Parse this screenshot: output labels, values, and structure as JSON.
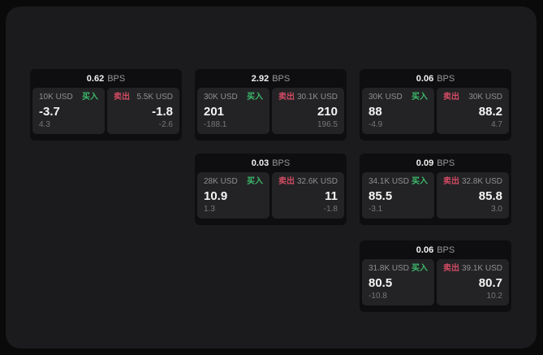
{
  "labels": {
    "buy": "买入",
    "sell": "卖出",
    "bps_unit": "BPS"
  },
  "colors": {
    "buy_green": "#3dba6c",
    "sell_red": "#d14b63",
    "panel_background": "#1b1b1d",
    "card_background": "#0e0e10",
    "tile_background": "#232325"
  },
  "cards": [
    {
      "bps": "0.62",
      "buy": {
        "amount": "10K USD",
        "price": "-3.7",
        "delta": "4.3"
      },
      "sell": {
        "amount": "5.5K USD",
        "price": "-1.8",
        "delta": "-2.6"
      }
    },
    {
      "bps": "2.92",
      "buy": {
        "amount": "30K USD",
        "price": "201",
        "delta": "-188.1"
      },
      "sell": {
        "amount": "30.1K USD",
        "price": "210",
        "delta": "196.5"
      }
    },
    {
      "bps": "0.06",
      "buy": {
        "amount": "30K USD",
        "price": "88",
        "delta": "-4.9"
      },
      "sell": {
        "amount": "30K USD",
        "price": "88.2",
        "delta": "4.7"
      }
    },
    {
      "bps": "0.03",
      "buy": {
        "amount": "28K USD",
        "price": "10.9",
        "delta": "1.3"
      },
      "sell": {
        "amount": "32.6K USD",
        "price": "11",
        "delta": "-1.8"
      }
    },
    {
      "bps": "0.09",
      "buy": {
        "amount": "34.1K USD",
        "price": "85.5",
        "delta": "-3.1"
      },
      "sell": {
        "amount": "32.8K USD",
        "price": "85.8",
        "delta": "3.0"
      }
    },
    {
      "bps": "0.06",
      "buy": {
        "amount": "31.8K USD",
        "price": "80.5",
        "delta": "-10.8"
      },
      "sell": {
        "amount": "39.1K USD",
        "price": "80.7",
        "delta": "10.2"
      }
    }
  ]
}
